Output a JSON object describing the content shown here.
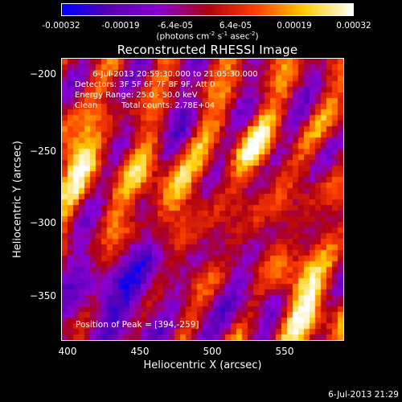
{
  "colorbar": {
    "ticks": [
      "-0.00032",
      "-0.00019",
      "-6.4e-05",
      "6.4e-05",
      "0.00019",
      "0.00032"
    ],
    "units_main": "(photons cm",
    "units_exp1": "-2",
    "units_mid": " s",
    "units_exp2": "-1",
    "units_mid2": " asec",
    "units_exp3": "-2",
    "units_end": ")",
    "colors": [
      "#0000ff",
      "#5a00b4",
      "#8b00d6",
      "#b00010",
      "#ff4000",
      "#ffcf00",
      "#ffffff"
    ]
  },
  "title": "Reconstructed RHESSI Image",
  "annotations": {
    "time_range": "6-Jul-2013 20:59:30.000 to 21:05:30.000",
    "detectors": "Detectors: 3F 5F 6F 7F 8F 9F, Att 0",
    "energy": "Energy Range: 25.0 - 50.0 keV",
    "algorithm": "Clean",
    "counts": "Total counts: 2.78E+04",
    "peak": "Position of Peak = [394,-259]"
  },
  "footer_timestamp": "6-Jul-2013 21:29",
  "chart_data": {
    "type": "heatmap",
    "title": "Reconstructed RHESSI Image",
    "xlabel": "Heliocentric X (arcsec)",
    "ylabel": "Heliocentric Y (arcsec)",
    "xlim": [
      394,
      589
    ],
    "ylim": [
      -384,
      -188
    ],
    "xticks": [
      400,
      450,
      500,
      550
    ],
    "xtick_labels": [
      "400",
      "450",
      "500",
      "550"
    ],
    "yticks": [
      -200,
      -250,
      -300,
      -350
    ],
    "ytick_labels": [
      "−200",
      "−250",
      "−300",
      "−350"
    ],
    "colorbar_range": [
      -0.00032,
      0.00032
    ],
    "peak_position": [
      394,
      -259
    ],
    "grid": false
  }
}
